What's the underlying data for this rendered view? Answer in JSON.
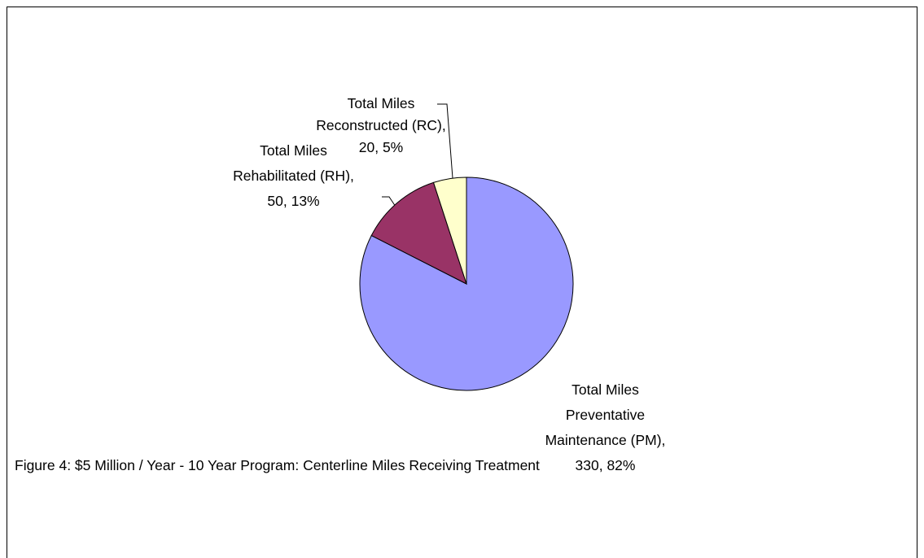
{
  "chart_data": {
    "type": "pie",
    "caption": "Figure 4:  $5 Million / Year - 10 Year Program:  Centerline Miles Receiving Treatment",
    "categories": [
      "Total Miles Preventative Maintenance (PM)",
      "Total Miles Rehabilitated (RH)",
      "Total Miles Reconstructed (RC)"
    ],
    "values": [
      330,
      50,
      20
    ],
    "value_labels": [
      ", 330, 82%",
      ", 50, 13%",
      ", 20, 5%"
    ],
    "colors": [
      "#9999ff",
      "#993366",
      "#ffffcc"
    ]
  }
}
